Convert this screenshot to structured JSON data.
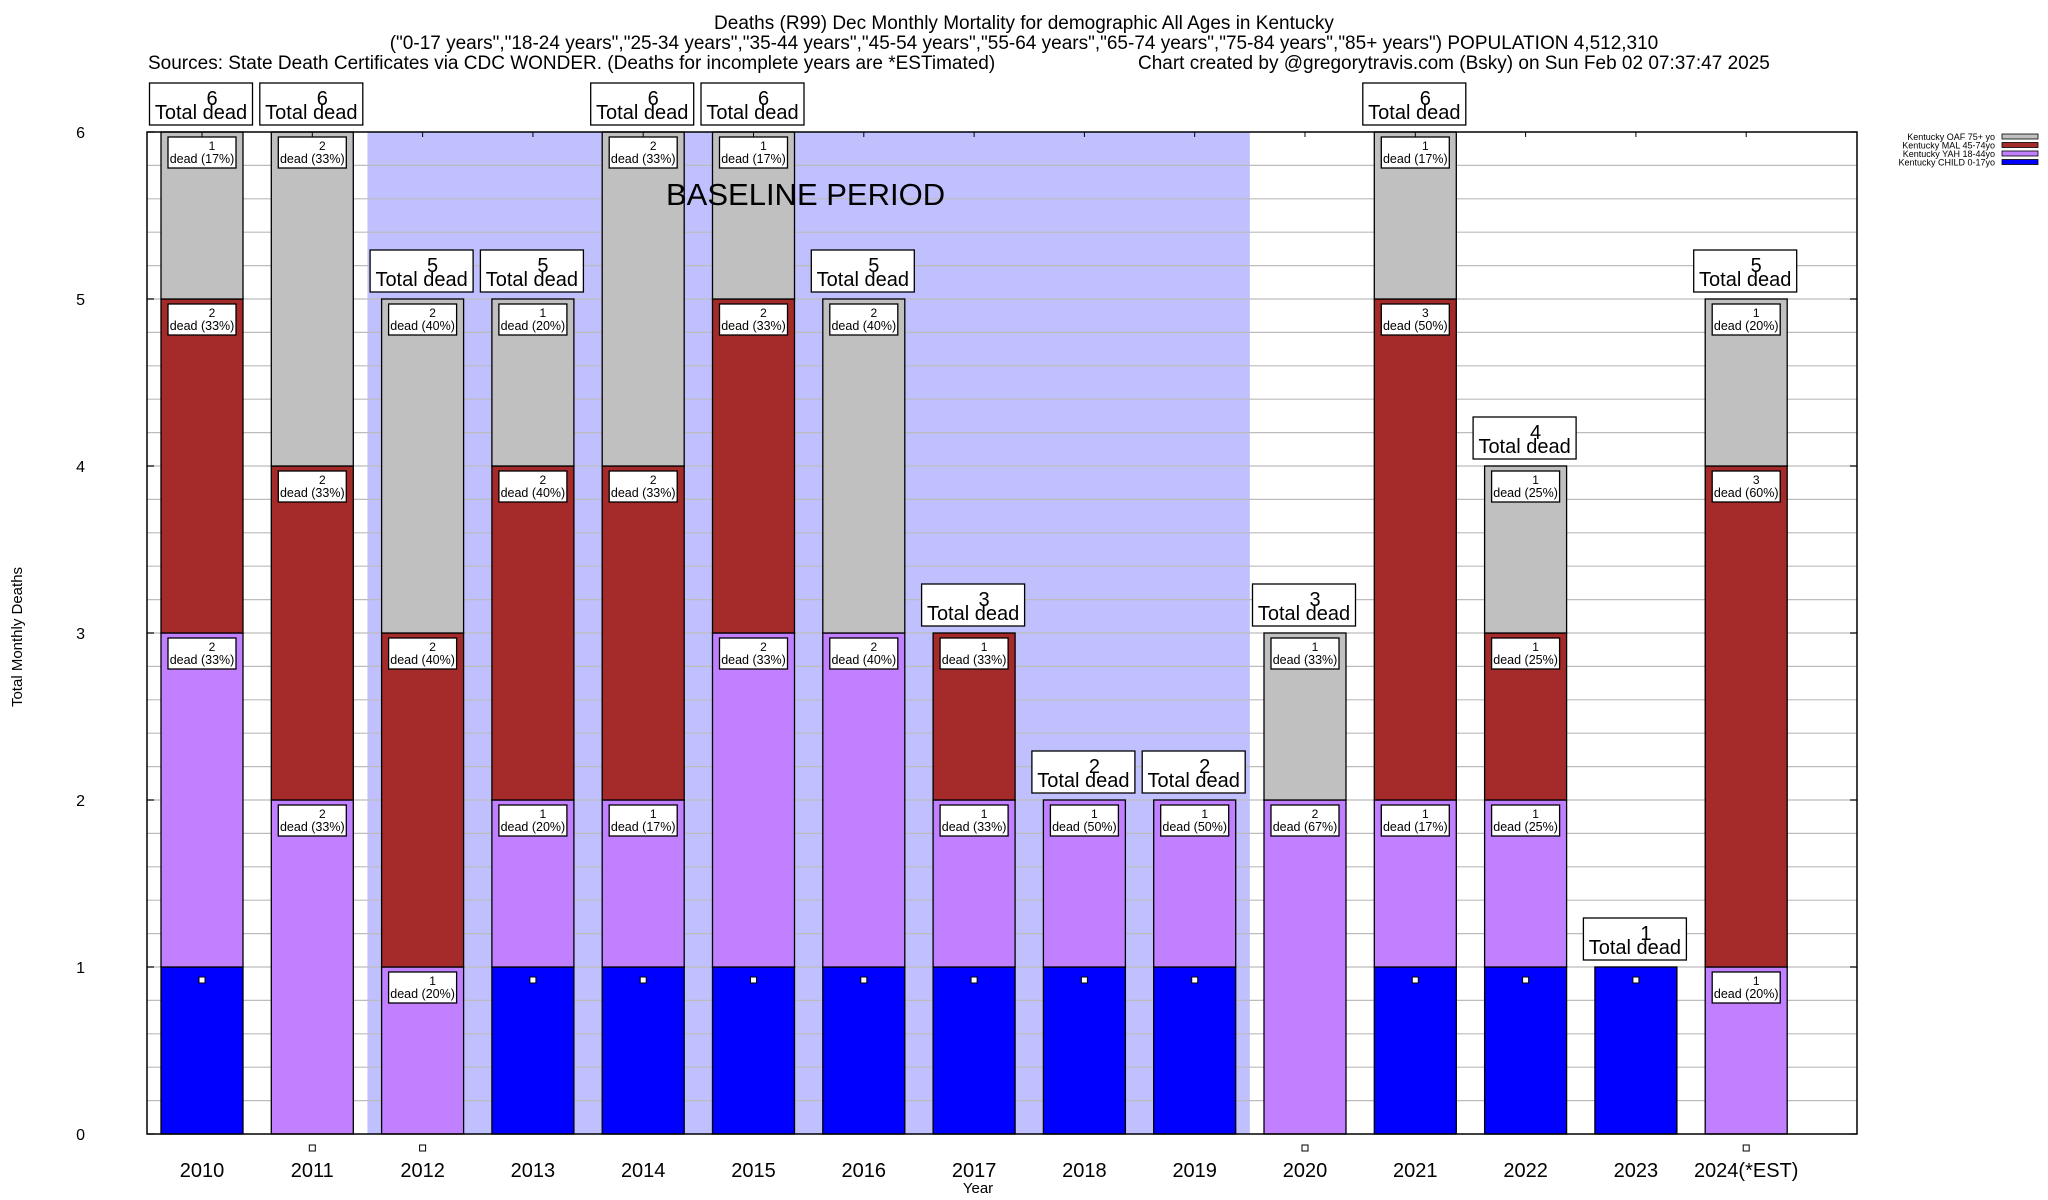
{
  "chart_data": {
    "type": "bar",
    "stacked": true,
    "title": "Deaths (R99) Dec Monthly Mortality for demographic All Ages in Kentucky",
    "subtitle": "(\"0-17 years\",\"18-24 years\",\"25-34 years\",\"35-44 years\",\"45-54 years\",\"55-64 years\",\"65-74 years\",\"75-84 years\",\"85+ years\") POPULATION 4,512,310",
    "source": "Sources: State Death Certificates via CDC WONDER. (Deaths for incomplete years are *ESTimated)",
    "credit": "Chart created by @gregorytravis.com (Bsky) on Sun Feb 02 07:37:47 2025",
    "xlabel": "Year",
    "ylabel": "Total Monthly Deaths",
    "ylim": [
      0,
      6
    ],
    "yticks": [
      0,
      1,
      2,
      3,
      4,
      5,
      6
    ],
    "grid": true,
    "legend_position": "top-right",
    "categories": [
      "2010",
      "2011",
      "2012",
      "2013",
      "2014",
      "2015",
      "2016",
      "2017",
      "2018",
      "2019",
      "2020",
      "2021",
      "2022",
      "2023",
      "2024(*EST)"
    ],
    "series": [
      {
        "name": "Kentucky CHILD 0-17yo",
        "color": "#0000ff",
        "values": [
          1,
          0,
          0,
          1,
          1,
          1,
          1,
          1,
          1,
          1,
          0,
          1,
          1,
          1,
          0
        ]
      },
      {
        "name": "Kentucky YAH 18-44yo",
        "color": "#c080ff",
        "values": [
          2,
          2,
          1,
          1,
          1,
          2,
          2,
          1,
          1,
          1,
          2,
          1,
          1,
          0,
          1
        ]
      },
      {
        "name": "Kentucky MAL 45-74yo",
        "color": "#a52a2a",
        "values": [
          2,
          2,
          2,
          2,
          2,
          2,
          0,
          1,
          0,
          0,
          0,
          3,
          1,
          0,
          3
        ]
      },
      {
        "name": "Kentucky OAF 75+ yo",
        "color": "#c0c0c0",
        "values": [
          1,
          2,
          2,
          1,
          2,
          1,
          2,
          0,
          0,
          0,
          1,
          1,
          1,
          0,
          1
        ]
      }
    ],
    "totals": [
      6,
      6,
      5,
      5,
      6,
      6,
      5,
      3,
      2,
      2,
      3,
      6,
      4,
      1,
      5
    ],
    "total_label": "Total dead",
    "segment_label_suffix": "dead",
    "baseline_period": {
      "label": "BASELINE PERIOD",
      "from_index": 1.5,
      "to_index": 9.5,
      "color": "#c0c0ff"
    },
    "legend_order": [
      "Kentucky OAF 75+ yo",
      "Kentucky MAL 45-74yo",
      "Kentucky YAH 18-44yo",
      "Kentucky CHILD 0-17yo"
    ]
  }
}
